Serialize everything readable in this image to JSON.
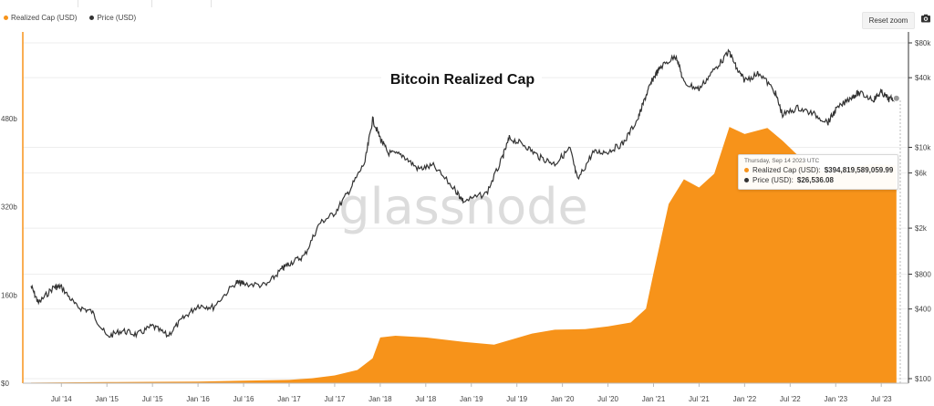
{
  "legend": {
    "realized_cap_label": "Realized Cap (USD)",
    "price_label": "Price (USD)"
  },
  "toolbar": {
    "reset_zoom_label": "Reset zoom",
    "export_icon": "camera-icon"
  },
  "watermark": "glassnode",
  "tooltip": {
    "date": "Thursday, Sep 14 2023 UTC",
    "realized_cap_label": "Realized Cap (USD):",
    "realized_cap_value": "$394,819,589,059.99",
    "price_label": "Price (USD):",
    "price_value": "$26,536.08"
  },
  "chart_data": {
    "type": "area",
    "title": "Bitcoin Realized Cap",
    "colors": {
      "realized_cap": "#f7931a",
      "price": "#333333",
      "axis_left": "#f7931a"
    },
    "x_tick_labels": [
      "Jul '14",
      "Jan '15",
      "Jul '15",
      "Jan '16",
      "Jul '16",
      "Jan '17",
      "Jul '17",
      "Jan '18",
      "Jul '18",
      "Jan '19",
      "Jul '19",
      "Jan '20",
      "Jul '20",
      "Jan '21",
      "Jul '21",
      "Jan '22",
      "Jul '22",
      "Jan '23",
      "Jul '23"
    ],
    "y_left": {
      "tick_labels": [
        "$0",
        "160b",
        "320b",
        "480b"
      ],
      "ticks": [
        0,
        160,
        320,
        480
      ],
      "range": [
        0,
        480
      ],
      "unit": "billion USD"
    },
    "y_right": {
      "scale": "log",
      "tick_labels": [
        "$100",
        "$400",
        "$800",
        "$2k",
        "$6k",
        "$10k",
        "$40k",
        "$80k"
      ],
      "ticks": [
        100,
        400,
        800,
        2000,
        6000,
        10000,
        40000,
        80000
      ],
      "range": [
        100,
        80000
      ]
    },
    "grid": true,
    "legend_position": "top-left",
    "series": [
      {
        "name": "Realized Cap (USD)",
        "axis": "left",
        "points": [
          [
            "2014-03",
            1
          ],
          [
            "2014-07",
            1.5
          ],
          [
            "2015-01",
            2
          ],
          [
            "2015-07",
            2.5
          ],
          [
            "2016-01",
            3
          ],
          [
            "2016-07",
            4.5
          ],
          [
            "2017-01",
            6
          ],
          [
            "2017-04",
            9
          ],
          [
            "2017-07",
            14
          ],
          [
            "2017-10",
            24
          ],
          [
            "2017-12",
            45
          ],
          [
            "2018-01",
            83
          ],
          [
            "2018-03",
            86
          ],
          [
            "2018-07",
            83
          ],
          [
            "2018-12",
            75
          ],
          [
            "2019-04",
            70
          ],
          [
            "2019-06",
            78
          ],
          [
            "2019-09",
            90
          ],
          [
            "2019-12",
            97
          ],
          [
            "2020-04",
            98
          ],
          [
            "2020-07",
            103
          ],
          [
            "2020-10",
            110
          ],
          [
            "2020-12",
            135
          ],
          [
            "2021-01",
            200
          ],
          [
            "2021-03",
            325
          ],
          [
            "2021-05",
            370
          ],
          [
            "2021-07",
            355
          ],
          [
            "2021-09",
            380
          ],
          [
            "2021-11",
            465
          ],
          [
            "2022-01",
            452
          ],
          [
            "2022-04",
            463
          ],
          [
            "2022-06",
            440
          ],
          [
            "2022-09",
            400
          ],
          [
            "2022-12",
            380
          ],
          [
            "2023-03",
            392
          ],
          [
            "2023-06",
            398
          ],
          [
            "2023-09",
            395
          ]
        ]
      },
      {
        "name": "Price (USD)",
        "axis": "right",
        "points": [
          [
            "2014-03",
            630
          ],
          [
            "2014-04",
            450
          ],
          [
            "2014-06",
            620
          ],
          [
            "2014-07",
            620
          ],
          [
            "2014-09",
            420
          ],
          [
            "2014-11",
            380
          ],
          [
            "2015-01",
            230
          ],
          [
            "2015-03",
            260
          ],
          [
            "2015-05",
            240
          ],
          [
            "2015-07",
            285
          ],
          [
            "2015-09",
            235
          ],
          [
            "2015-11",
            330
          ],
          [
            "2016-01",
            430
          ],
          [
            "2016-03",
            415
          ],
          [
            "2016-06",
            680
          ],
          [
            "2016-07",
            660
          ],
          [
            "2016-10",
            640
          ],
          [
            "2016-12",
            880
          ],
          [
            "2017-01",
            990
          ],
          [
            "2017-03",
            1150
          ],
          [
            "2017-05",
            2200
          ],
          [
            "2017-07",
            2700
          ],
          [
            "2017-09",
            4300
          ],
          [
            "2017-11",
            7500
          ],
          [
            "2017-12",
            17500
          ],
          [
            "2018-01",
            12000
          ],
          [
            "2018-02",
            9000
          ],
          [
            "2018-04",
            8500
          ],
          [
            "2018-06",
            6500
          ],
          [
            "2018-08",
            6900
          ],
          [
            "2018-11",
            4200
          ],
          [
            "2018-12",
            3400
          ],
          [
            "2019-03",
            4000
          ],
          [
            "2019-05",
            7800
          ],
          [
            "2019-06",
            12000
          ],
          [
            "2019-08",
            10500
          ],
          [
            "2019-10",
            8200
          ],
          [
            "2019-12",
            7200
          ],
          [
            "2020-02",
            9800
          ],
          [
            "2020-03",
            5200
          ],
          [
            "2020-05",
            9000
          ],
          [
            "2020-07",
            9200
          ],
          [
            "2020-09",
            10800
          ],
          [
            "2020-11",
            18000
          ],
          [
            "2020-12",
            28000
          ],
          [
            "2021-01",
            40000
          ],
          [
            "2021-02",
            50000
          ],
          [
            "2021-04",
            62000
          ],
          [
            "2021-05",
            36000
          ],
          [
            "2021-07",
            32000
          ],
          [
            "2021-09",
            47000
          ],
          [
            "2021-11",
            67000
          ],
          [
            "2021-12",
            47000
          ],
          [
            "2022-01",
            38000
          ],
          [
            "2022-03",
            44000
          ],
          [
            "2022-05",
            30000
          ],
          [
            "2022-06",
            19000
          ],
          [
            "2022-08",
            22000
          ],
          [
            "2022-10",
            19500
          ],
          [
            "2022-12",
            16500
          ],
          [
            "2023-01",
            21000
          ],
          [
            "2023-03",
            27000
          ],
          [
            "2023-04",
            29500
          ],
          [
            "2023-06",
            26000
          ],
          [
            "2023-07",
            30000
          ],
          [
            "2023-08",
            26000
          ],
          [
            "2023-09",
            26536
          ]
        ]
      }
    ],
    "hover": {
      "date": "2023-09-14",
      "realized_cap": 394.82,
      "price": 26536.08
    }
  }
}
